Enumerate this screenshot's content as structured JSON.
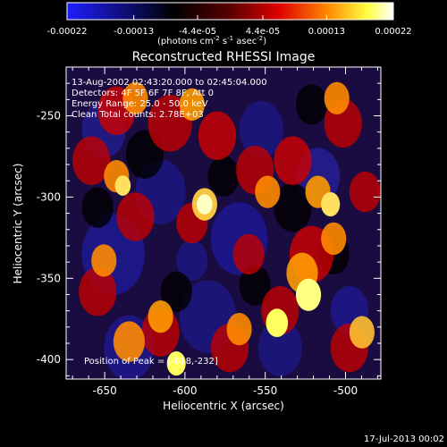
{
  "colorbar": {
    "tick_labels": [
      "-0.00022",
      "-0.00013",
      "-4.4e-05",
      "4.4e-05",
      "0.00013",
      "0.00022"
    ],
    "range": [
      -0.00022,
      0.00022
    ],
    "units_main": "(photons cm",
    "units_exp1": "-2",
    "units_mid": " s",
    "units_exp2": "-1",
    "units_end": " asec",
    "units_exp3": "-2",
    "units_close": ")"
  },
  "overlay": {
    "time_line": "13-Aug-2002 02:43:20.000 to 02:45:04.000",
    "detectors_line": "Detectors: 4F 5F 6F 7F 8F, Att 0",
    "energy_line": "Energy Range: 25.0 - 50.0 keV",
    "counts_line": "Clean     Total counts: 2.78E+03",
    "peak_line": "Position of Peak = [-618,-232]"
  },
  "footer": {
    "timestamp": "17-Jul-2013 00:02"
  },
  "chart_data": {
    "type": "heatmap",
    "title": "Reconstructed RHESSI Image",
    "xlabel": "Heliocentric X (arcsec)",
    "ylabel": "Heliocentric Y (arcsec)",
    "xlim": [
      -674,
      -478
    ],
    "ylim": [
      -412,
      -220
    ],
    "x_ticks": [
      -650,
      -600,
      -550,
      -500
    ],
    "y_ticks": [
      -250,
      -300,
      -350,
      -400
    ],
    "x_tick_labels": [
      "-650",
      "-600",
      "-550",
      "-500"
    ],
    "y_tick_labels": [
      "-250",
      "-300",
      "-350",
      "-400"
    ],
    "colormap": "rhessi-blue-black-red-yellow-white",
    "colors": {
      "background": "#000000",
      "text": "#ffffff",
      "colormap_stops": [
        "#1e1eff",
        "#000000",
        "#7a0000",
        "#ff2a00",
        "#ff9a00",
        "#ffff40",
        "#ffffff"
      ]
    }
  }
}
